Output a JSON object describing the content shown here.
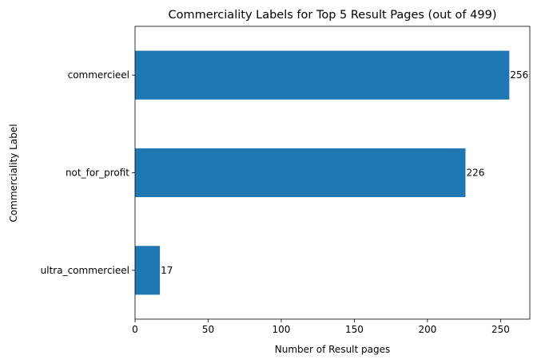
{
  "chart_data": {
    "type": "bar",
    "orientation": "horizontal",
    "title": "Commerciality Labels for Top 5 Result Pages (out of 499)",
    "xlabel": "Number of Result pages",
    "ylabel": "Commerciality Label",
    "categories": [
      "commercieel",
      "not_for_profit",
      "ultra_commercieel"
    ],
    "values": [
      256,
      226,
      17
    ],
    "data_labels": [
      "256",
      "226",
      "17"
    ],
    "xlim": [
      0,
      270
    ],
    "xticks": [
      0,
      50,
      100,
      150,
      200,
      250
    ],
    "xtick_labels": [
      "0",
      "50",
      "100",
      "150",
      "200",
      "250"
    ],
    "grid": false,
    "legend": "none",
    "bar_color": "#1f77b4"
  }
}
